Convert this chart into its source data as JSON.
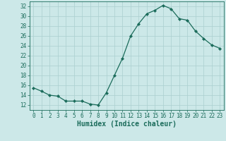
{
  "x": [
    0,
    1,
    2,
    3,
    4,
    5,
    6,
    7,
    8,
    9,
    10,
    11,
    12,
    13,
    14,
    15,
    16,
    17,
    18,
    19,
    20,
    21,
    22,
    23
  ],
  "y": [
    15.5,
    14.8,
    14.0,
    13.8,
    12.8,
    12.8,
    12.8,
    12.2,
    12.0,
    14.5,
    18.0,
    21.5,
    26.0,
    28.5,
    30.5,
    31.2,
    32.2,
    31.5,
    29.5,
    29.2,
    27.0,
    25.5,
    24.2,
    23.5
  ],
  "line_color": "#1a6b5a",
  "marker": "D",
  "marker_size": 2.2,
  "background_color": "#cce8e8",
  "grid_color": "#aacfcf",
  "xlabel": "Humidex (Indice chaleur)",
  "xlim": [
    -0.5,
    23.5
  ],
  "ylim": [
    11,
    33
  ],
  "yticks": [
    12,
    14,
    16,
    18,
    20,
    22,
    24,
    26,
    28,
    30,
    32
  ],
  "xticks": [
    0,
    1,
    2,
    3,
    4,
    5,
    6,
    7,
    8,
    9,
    10,
    11,
    12,
    13,
    14,
    15,
    16,
    17,
    18,
    19,
    20,
    21,
    22,
    23
  ],
  "tick_fontsize": 5.5,
  "xlabel_fontsize": 7,
  "tick_color": "#1a6b5a",
  "axis_color": "#1a6b5a",
  "line_width": 0.9
}
